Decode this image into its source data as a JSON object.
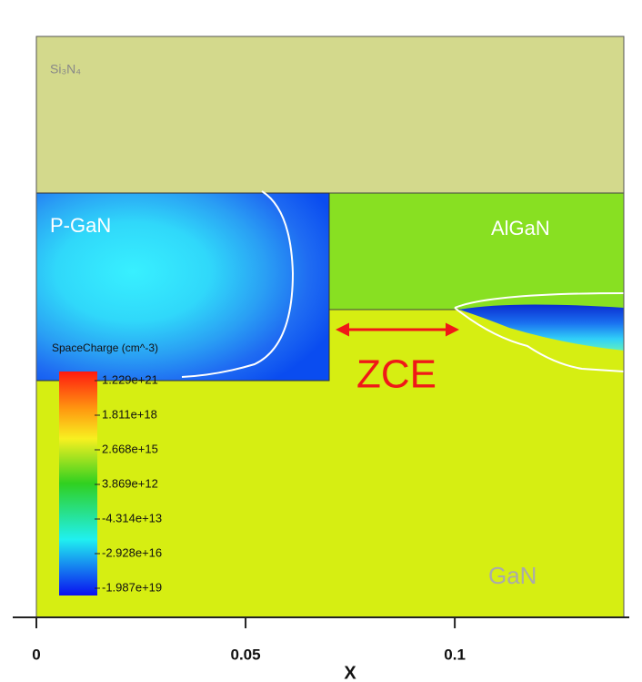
{
  "chart_data": {
    "type": "contour",
    "xlabel": "X",
    "xlim": [
      0,
      0.1404
    ],
    "xticks": [
      0,
      0.05,
      0.1
    ],
    "regions": [
      "Si₃N₄",
      "P-GaN",
      "AlGaN",
      "GaN"
    ],
    "annotation": "ZCE",
    "colorbar_title": "SpaceCharge (cm^-3)",
    "colorbar_ticks": [
      {
        "value": 1.229e+21,
        "label": "1.229e+21"
      },
      {
        "value": 1.811e+18,
        "label": "1.811e+18"
      },
      {
        "value": 2668000000000000.0,
        "label": "2.668e+15"
      },
      {
        "value": 3869000000000.0,
        "label": "3.869e+12"
      },
      {
        "value": -43140000000000.0,
        "label": "-4.314e+13"
      },
      {
        "value": -2.928e+16,
        "label": "-2.928e+16"
      },
      {
        "value": -1.987e+19,
        "label": "-1.987e+19"
      }
    ]
  }
}
